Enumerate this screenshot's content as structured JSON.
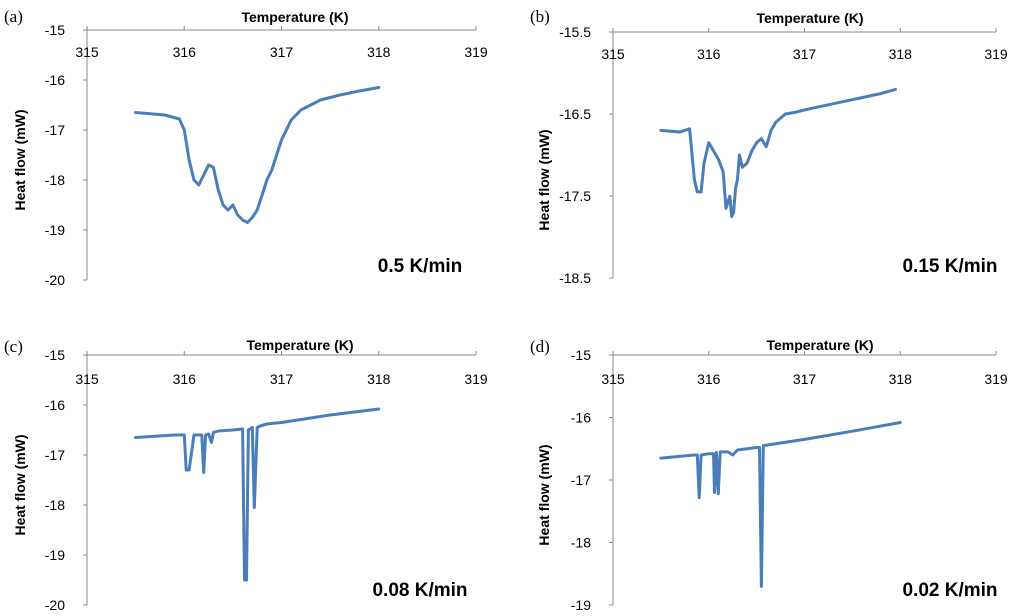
{
  "chart_data": [
    {
      "panel_label": "(a)",
      "type": "line",
      "xlabel": "Temperature (K)",
      "ylabel": "Heat flow (mW)",
      "rate": "0.5 K/min",
      "xlim": [
        315,
        319
      ],
      "ylim": [
        -20,
        -15
      ],
      "x_ticks": [
        "315",
        "316",
        "317",
        "318",
        "319"
      ],
      "y_ticks": [
        "-15",
        "-16",
        "-17",
        "-18",
        "-19",
        "-20"
      ],
      "series": [
        {
          "x": [
            315.5,
            315.8,
            315.95,
            316.0,
            316.05,
            316.1,
            316.15,
            316.2,
            316.25,
            316.3,
            316.35,
            316.4,
            316.45,
            316.5,
            316.55,
            316.6,
            316.65,
            316.7,
            316.75,
            316.8,
            316.85,
            316.9,
            316.95,
            317.0,
            317.1,
            317.2,
            317.3,
            317.4,
            317.5,
            317.6,
            317.8,
            318.0
          ],
          "y": [
            -16.65,
            -16.7,
            -16.78,
            -17.0,
            -17.6,
            -18.0,
            -18.1,
            -17.9,
            -17.7,
            -17.75,
            -18.2,
            -18.5,
            -18.6,
            -18.5,
            -18.7,
            -18.8,
            -18.85,
            -18.75,
            -18.6,
            -18.3,
            -18.0,
            -17.8,
            -17.5,
            -17.2,
            -16.8,
            -16.6,
            -16.5,
            -16.4,
            -16.35,
            -16.3,
            -16.22,
            -16.15
          ]
        }
      ]
    },
    {
      "panel_label": "(b)",
      "type": "line",
      "xlabel": "Temperature (K)",
      "ylabel": "Heat flow (mW)",
      "rate": "0.15 K/min",
      "xlim": [
        315,
        319
      ],
      "ylim": [
        -18.5,
        -15.5
      ],
      "x_ticks": [
        "315",
        "316",
        "317",
        "318",
        "319"
      ],
      "y_ticks": [
        "-15.5",
        "-16.5",
        "-17.5",
        "-18.5"
      ],
      "series": [
        {
          "x": [
            315.5,
            315.7,
            315.8,
            315.85,
            315.88,
            315.92,
            315.95,
            316.0,
            316.05,
            316.1,
            316.15,
            316.18,
            316.22,
            316.24,
            316.26,
            316.28,
            316.3,
            316.32,
            316.35,
            316.4,
            316.45,
            316.5,
            316.55,
            316.6,
            316.65,
            316.7,
            316.75,
            316.8,
            316.9,
            317.0,
            317.2,
            317.4,
            317.6,
            317.8,
            317.95
          ],
          "y": [
            -16.7,
            -16.72,
            -16.68,
            -17.3,
            -17.45,
            -17.45,
            -17.1,
            -16.85,
            -16.95,
            -17.05,
            -17.2,
            -17.65,
            -17.5,
            -17.75,
            -17.7,
            -17.4,
            -17.3,
            -17.0,
            -17.15,
            -17.1,
            -16.95,
            -16.85,
            -16.8,
            -16.9,
            -16.7,
            -16.6,
            -16.55,
            -16.5,
            -16.48,
            -16.45,
            -16.4,
            -16.35,
            -16.3,
            -16.25,
            -16.2
          ]
        }
      ]
    },
    {
      "panel_label": "(c)",
      "type": "line",
      "xlabel": "Temperature (K)",
      "ylabel": "Heat flow (mW)",
      "rate": "0.08 K/min",
      "xlim": [
        315,
        319
      ],
      "ylim": [
        -20,
        -15
      ],
      "x_ticks": [
        "315",
        "316",
        "317",
        "318",
        "319"
      ],
      "y_ticks": [
        "-15",
        "-16",
        "-17",
        "-18",
        "-19",
        "-20"
      ],
      "series": [
        {
          "x": [
            315.5,
            315.9,
            316.0,
            316.02,
            316.05,
            316.1,
            316.18,
            316.2,
            316.22,
            316.25,
            316.28,
            316.3,
            316.35,
            316.5,
            316.6,
            316.62,
            316.64,
            316.66,
            316.7,
            316.72,
            316.75,
            316.78,
            316.85,
            317.0,
            317.5,
            318.0
          ],
          "y": [
            -16.65,
            -16.6,
            -16.6,
            -17.3,
            -17.3,
            -16.6,
            -16.6,
            -17.35,
            -16.6,
            -16.58,
            -16.75,
            -16.55,
            -16.52,
            -16.5,
            -16.48,
            -19.5,
            -19.5,
            -16.5,
            -16.45,
            -18.05,
            -16.45,
            -16.42,
            -16.38,
            -16.35,
            -16.2,
            -16.08
          ]
        }
      ]
    },
    {
      "panel_label": "(d)",
      "type": "line",
      "xlabel": "Temperature (K)",
      "ylabel": "Heat flow (mW)",
      "rate": "0.02 K/min",
      "xlim": [
        315,
        319
      ],
      "ylim": [
        -19,
        -15
      ],
      "x_ticks": [
        "315",
        "316",
        "317",
        "318",
        "319"
      ],
      "y_ticks": [
        "-15",
        "-16",
        "-17",
        "-18",
        "-19"
      ],
      "series": [
        {
          "x": [
            315.5,
            315.85,
            315.88,
            315.9,
            315.92,
            316.0,
            316.05,
            316.06,
            316.08,
            316.1,
            316.12,
            316.2,
            316.25,
            316.3,
            316.5,
            316.53,
            316.55,
            316.57,
            317.0,
            317.5,
            318.0
          ],
          "y": [
            -16.65,
            -16.6,
            -16.6,
            -17.28,
            -16.6,
            -16.58,
            -16.58,
            -17.2,
            -16.56,
            -17.22,
            -16.55,
            -16.55,
            -16.6,
            -16.52,
            -16.48,
            -16.48,
            -18.7,
            -16.45,
            -16.35,
            -16.22,
            -16.08
          ]
        }
      ]
    }
  ]
}
